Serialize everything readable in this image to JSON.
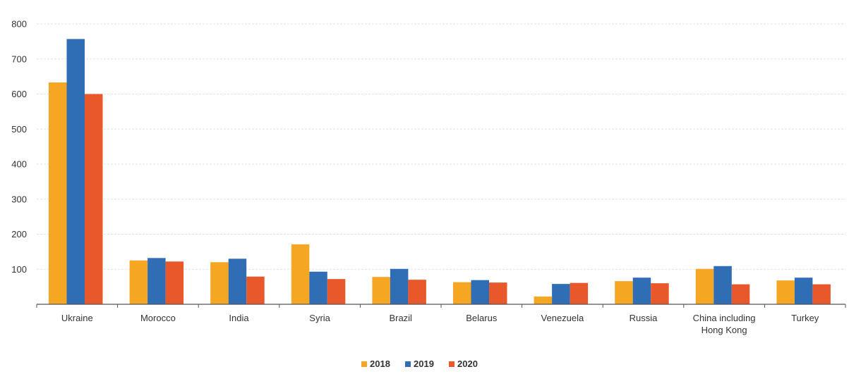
{
  "chart_data": {
    "type": "bar",
    "categories": [
      "Ukraine",
      "Morocco",
      "India",
      "Syria",
      "Brazil",
      "Belarus",
      "Venezuela",
      "Russia",
      "China including Hong Kong",
      "Turkey"
    ],
    "category_lines": [
      [
        "Ukraine"
      ],
      [
        "Morocco"
      ],
      [
        "India"
      ],
      [
        "Syria"
      ],
      [
        "Brazil"
      ],
      [
        "Belarus"
      ],
      [
        "Venezuela"
      ],
      [
        "Russia"
      ],
      [
        "China including",
        "Hong Kong"
      ],
      [
        "Turkey"
      ]
    ],
    "series": [
      {
        "name": "2018",
        "color": "#f5a623",
        "values": [
          633,
          125,
          120,
          171,
          78,
          63,
          22,
          66,
          101,
          68
        ]
      },
      {
        "name": "2019",
        "color": "#2f6db5",
        "values": [
          757,
          132,
          130,
          93,
          101,
          69,
          58,
          76,
          109,
          76
        ]
      },
      {
        "name": "2020",
        "color": "#e8582a",
        "values": [
          600,
          122,
          79,
          72,
          70,
          62,
          61,
          60,
          57,
          57
        ]
      }
    ],
    "yticks": [
      0,
      100,
      200,
      300,
      400,
      500,
      600,
      700,
      800
    ],
    "ylim": [
      0,
      800
    ],
    "grid": true,
    "legend_position": "bottom-center",
    "title": "",
    "xlabel": "",
    "ylabel": ""
  }
}
